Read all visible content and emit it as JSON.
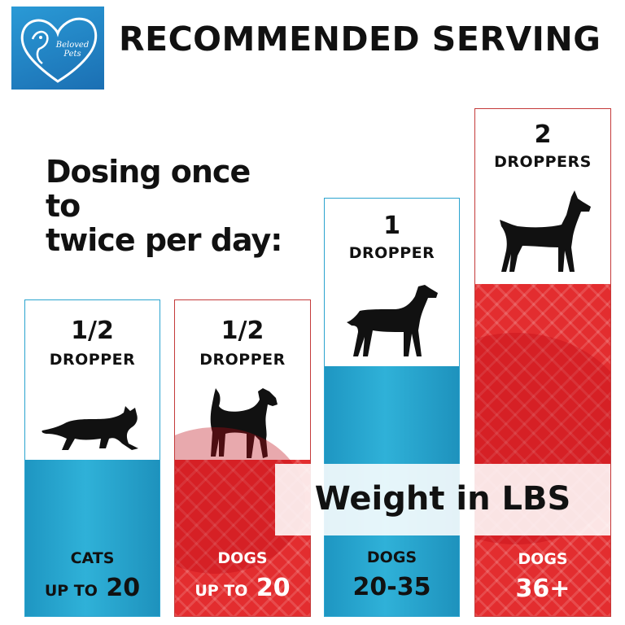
{
  "brand": {
    "logo_text": "Beloved Pets"
  },
  "header": {
    "title": "RECOMMENDED SERVING"
  },
  "intro": {
    "line1": "Dosing once to",
    "line2": "twice per day:"
  },
  "cards": [
    {
      "dose": "1/2",
      "unit": "DROPPER",
      "animal_icon": "cat-icon",
      "species": "CATS",
      "range_prefix": "UP TO",
      "range": "20",
      "theme": "blue"
    },
    {
      "dose": "1/2",
      "unit": "DROPPER",
      "animal_icon": "terrier-icon",
      "species": "DOGS",
      "range_prefix": "UP TO",
      "range": "20",
      "theme": "red"
    },
    {
      "dose": "1",
      "unit": "DROPPER",
      "animal_icon": "hound-icon",
      "species": "DOGS",
      "range_prefix": "",
      "range": "20-35",
      "theme": "blue"
    },
    {
      "dose": "2",
      "unit": "DROPPERS",
      "animal_icon": "doberman-icon",
      "species": "DOGS",
      "range_prefix": "",
      "range": "36+",
      "theme": "red"
    }
  ],
  "banner": {
    "text": "Weight in LBS"
  },
  "colors": {
    "blue": "#1e96c2",
    "red": "#e32d2f",
    "logo_blue": "#1b6fb3"
  }
}
